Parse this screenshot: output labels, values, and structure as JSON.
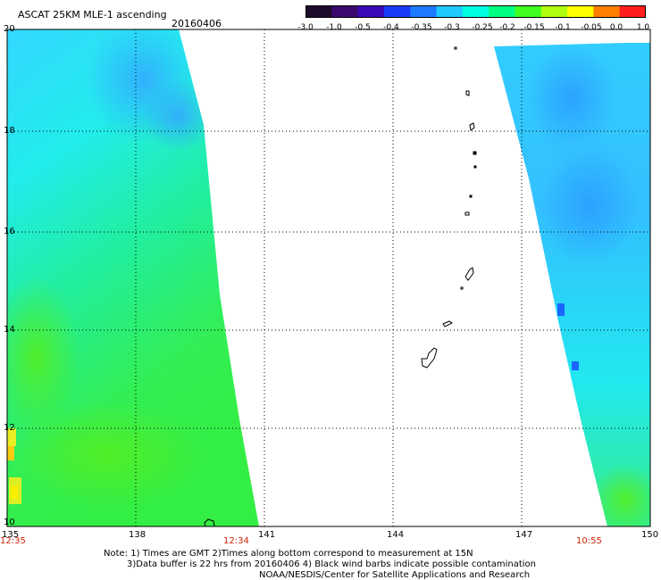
{
  "header": {
    "title": "ASCAT 25KM MLE-1 ascending",
    "date": "20160406"
  },
  "colorbar": {
    "labels": [
      "-3.0",
      "-1.0",
      "-0.5",
      "-0.4",
      "-0.35",
      "-0.3",
      "-0.25",
      "-0.2",
      "-0.15",
      "-0.1",
      "-0.05",
      "0.0",
      "1.0"
    ],
    "colors": [
      "#1e0a2a",
      "#3b0a6e",
      "#3a0ab8",
      "#1a3bf5",
      "#1e7aff",
      "#1fc8ff",
      "#00ffe0",
      "#00ff80",
      "#40ff20",
      "#b0ff10",
      "#ffff00",
      "#ff8000",
      "#ff1e1e"
    ]
  },
  "axes": {
    "lat_ticks": [
      "20",
      "18",
      "16",
      "14",
      "12",
      "10"
    ],
    "lon_ticks": [
      "135",
      "138",
      "141",
      "144",
      "147",
      "150"
    ]
  },
  "pass_times": [
    "12:35",
    "12:34",
    "10:55"
  ],
  "colors": {
    "swath_cyan": "#22e8f0",
    "swath_blue": "#33bbff",
    "swath_green": "#33ee55",
    "swath_yellow": "#e8ee22",
    "time_red": "#cc2200"
  },
  "notes": {
    "line1": "Note: 1) Times are GMT 2)Times along bottom correspond to measurement at 15N",
    "line2": "3)Data buffer is 22 hrs from 20160406 4) Black wind barbs indicate possible contamination",
    "line3": "NOAA/NESDIS/Center for Satellite Applications and Research"
  }
}
